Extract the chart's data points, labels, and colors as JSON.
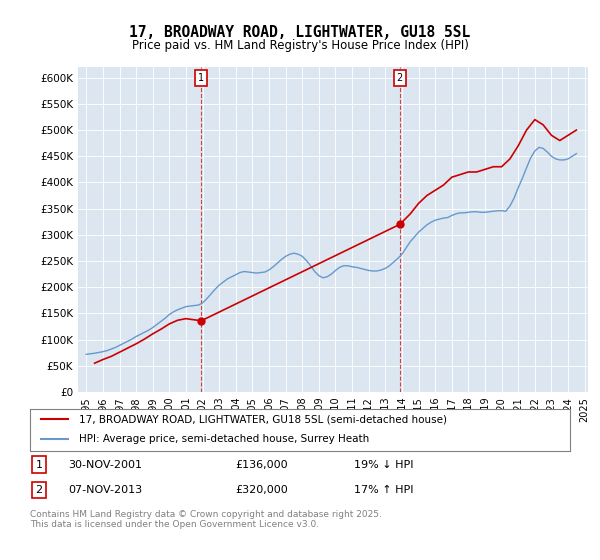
{
  "title": "17, BROADWAY ROAD, LIGHTWATER, GU18 5SL",
  "subtitle": "Price paid vs. HM Land Registry's House Price Index (HPI)",
  "ylabel": "",
  "ylim": [
    0,
    620000
  ],
  "yticks": [
    0,
    50000,
    100000,
    150000,
    200000,
    250000,
    300000,
    350000,
    400000,
    450000,
    500000,
    550000,
    600000
  ],
  "ytick_labels": [
    "£0",
    "£50K",
    "£100K",
    "£150K",
    "£200K",
    "£250K",
    "£300K",
    "£350K",
    "£400K",
    "£450K",
    "£500K",
    "£550K",
    "£600K"
  ],
  "line1_color": "#cc0000",
  "line2_color": "#6699cc",
  "background_color": "#dce6f0",
  "plot_bg_color": "#dce6f0",
  "sale1_date_idx": 2001.92,
  "sale1_price": 136000,
  "sale2_date_idx": 2013.87,
  "sale2_price": 320000,
  "legend1_label": "17, BROADWAY ROAD, LIGHTWATER, GU18 5SL (semi-detached house)",
  "legend2_label": "HPI: Average price, semi-detached house, Surrey Heath",
  "note1": "1     30-NOV-2001          £136,000          19% ↓ HPI",
  "note2": "2     07-NOV-2013          £320,000          17% ↑ HPI",
  "footnote": "Contains HM Land Registry data © Crown copyright and database right 2025.\nThis data is licensed under the Open Government Licence v3.0.",
  "hpi_dates": [
    1995.0,
    1995.25,
    1995.5,
    1995.75,
    1996.0,
    1996.25,
    1996.5,
    1996.75,
    1997.0,
    1997.25,
    1997.5,
    1997.75,
    1998.0,
    1998.25,
    1998.5,
    1998.75,
    1999.0,
    1999.25,
    1999.5,
    1999.75,
    2000.0,
    2000.25,
    2000.5,
    2000.75,
    2001.0,
    2001.25,
    2001.5,
    2001.75,
    2002.0,
    2002.25,
    2002.5,
    2002.75,
    2003.0,
    2003.25,
    2003.5,
    2003.75,
    2004.0,
    2004.25,
    2004.5,
    2004.75,
    2005.0,
    2005.25,
    2005.5,
    2005.75,
    2006.0,
    2006.25,
    2006.5,
    2006.75,
    2007.0,
    2007.25,
    2007.5,
    2007.75,
    2008.0,
    2008.25,
    2008.5,
    2008.75,
    2009.0,
    2009.25,
    2009.5,
    2009.75,
    2010.0,
    2010.25,
    2010.5,
    2010.75,
    2011.0,
    2011.25,
    2011.5,
    2011.75,
    2012.0,
    2012.25,
    2012.5,
    2012.75,
    2013.0,
    2013.25,
    2013.5,
    2013.75,
    2014.0,
    2014.25,
    2014.5,
    2014.75,
    2015.0,
    2015.25,
    2015.5,
    2015.75,
    2016.0,
    2016.25,
    2016.5,
    2016.75,
    2017.0,
    2017.25,
    2017.5,
    2017.75,
    2018.0,
    2018.25,
    2018.5,
    2018.75,
    2019.0,
    2019.25,
    2019.5,
    2019.75,
    2020.0,
    2020.25,
    2020.5,
    2020.75,
    2021.0,
    2021.25,
    2021.5,
    2021.75,
    2022.0,
    2022.25,
    2022.5,
    2022.75,
    2023.0,
    2023.25,
    2023.5,
    2023.75,
    2024.0,
    2024.25,
    2024.5
  ],
  "hpi_values": [
    72000,
    73000,
    74000,
    75500,
    77000,
    79000,
    82000,
    85000,
    89000,
    93000,
    97000,
    101000,
    106000,
    110000,
    114000,
    118000,
    123000,
    129000,
    135000,
    141000,
    148000,
    153000,
    157000,
    160000,
    163000,
    164000,
    165000,
    166000,
    170000,
    178000,
    187000,
    196000,
    204000,
    210000,
    216000,
    220000,
    224000,
    228000,
    230000,
    229000,
    228000,
    227000,
    228000,
    229000,
    233000,
    239000,
    246000,
    253000,
    259000,
    263000,
    265000,
    263000,
    259000,
    251000,
    241000,
    230000,
    222000,
    218000,
    220000,
    225000,
    232000,
    238000,
    241000,
    241000,
    239000,
    238000,
    236000,
    234000,
    232000,
    231000,
    231000,
    233000,
    236000,
    241000,
    248000,
    255000,
    263000,
    275000,
    287000,
    296000,
    305000,
    312000,
    319000,
    324000,
    328000,
    330000,
    332000,
    333000,
    337000,
    340000,
    342000,
    342000,
    343000,
    344000,
    344000,
    343000,
    343000,
    344000,
    345000,
    346000,
    346000,
    345000,
    355000,
    370000,
    390000,
    408000,
    428000,
    447000,
    460000,
    467000,
    465000,
    458000,
    450000,
    445000,
    443000,
    443000,
    445000,
    450000,
    455000
  ],
  "pp_dates": [
    1995.5,
    1996.0,
    1996.5,
    1997.0,
    1997.5,
    1998.0,
    1998.5,
    1999.0,
    1999.5,
    2000.0,
    2000.5,
    2001.0,
    2001.92,
    2013.87,
    2014.5,
    2015.0,
    2015.5,
    2016.0,
    2016.5,
    2017.0,
    2017.5,
    2018.0,
    2018.5,
    2019.0,
    2019.5,
    2020.0,
    2020.5,
    2021.0,
    2021.5,
    2022.0,
    2022.5,
    2023.0,
    2023.5,
    2024.0,
    2024.5
  ],
  "pp_values": [
    55000,
    62000,
    68000,
    76000,
    84000,
    92000,
    101000,
    111000,
    120000,
    130000,
    137000,
    140000,
    136000,
    320000,
    340000,
    360000,
    375000,
    385000,
    395000,
    410000,
    415000,
    420000,
    420000,
    425000,
    430000,
    430000,
    445000,
    470000,
    500000,
    520000,
    510000,
    490000,
    480000,
    490000,
    500000
  ]
}
